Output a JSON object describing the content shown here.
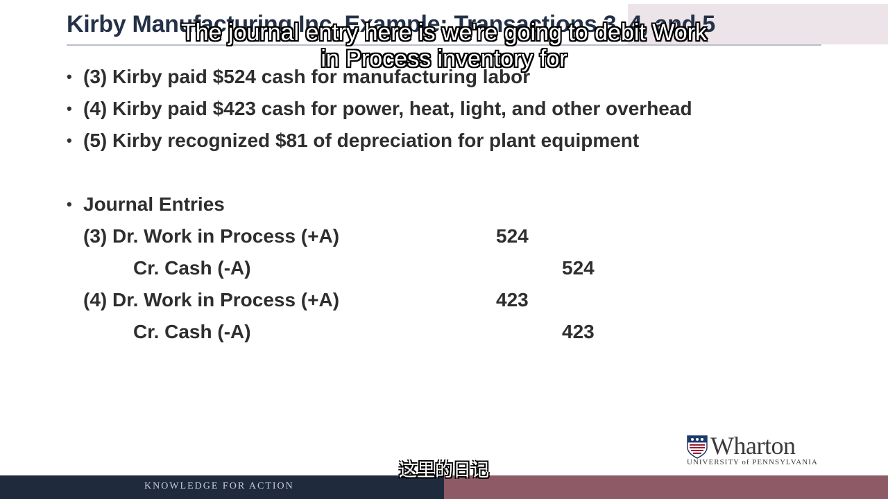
{
  "slide": {
    "title": "Kirby Manufacturing Inc. Example: Transactions 3, 4, and 5",
    "bullets": [
      "(3) Kirby paid $524 cash for manufacturing labor",
      "(4) Kirby paid $423 cash for power, heat, light, and other overhead",
      "(5) Kirby recognized $81 of depreciation for plant equipment"
    ],
    "bullet_symbol": "•",
    "journal": {
      "heading": "Journal Entries",
      "entries": [
        {
          "account": "(3) Dr. Work in Process (+A)",
          "amount": "524",
          "side": "debit"
        },
        {
          "account": "Cr. Cash (-A)",
          "amount": "524",
          "side": "credit"
        },
        {
          "account": "(4) Dr. Work in Process (+A)",
          "amount": "423",
          "side": "debit"
        },
        {
          "account": "Cr. Cash (-A)",
          "amount": "423",
          "side": "credit"
        }
      ]
    }
  },
  "captions": {
    "english": "The journal entry here is we're going to debit Work in Process inventory for",
    "chinese": "这里的日记"
  },
  "logo": {
    "name": "Wharton",
    "subtitle": "UNIVERSITY of PENNSYLVANIA"
  },
  "footer": {
    "tagline": "KNOWLEDGE FOR ACTION"
  },
  "colors": {
    "title": "#243147",
    "footer_navy": "#202a3d",
    "footer_maroon": "#8d5a66",
    "shield_red": "#9a1b2f",
    "shield_blue": "#1f3a6e"
  }
}
